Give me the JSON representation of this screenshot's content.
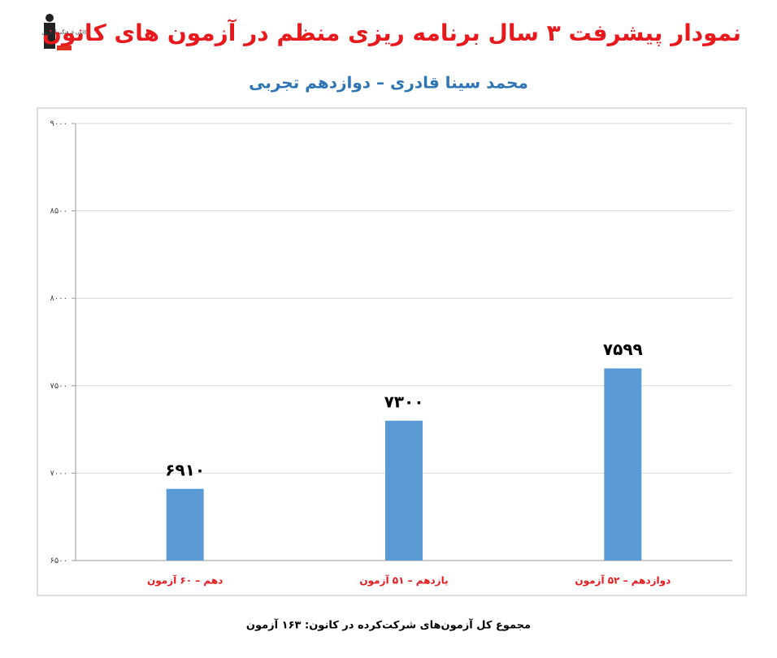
{
  "logo": {
    "text": "کانون فرهنگی آموزش"
  },
  "chart_data": {
    "type": "bar",
    "title": "نمودار پیشرفت ۳ سال برنامه ریزی منظم در آزمون های کانون",
    "subtitle": "محمد سینا قادری – دوازدهم تجربی",
    "categories": [
      "دهم – ۶۰ آزمون",
      "یازدهم – ۵۱ آزمون",
      "دوازدهم – ۵۲ آزمون"
    ],
    "values": [
      6910,
      7300,
      7599
    ],
    "value_labels": [
      "۶۹۱۰",
      "۷۳۰۰",
      "۷۵۹۹"
    ],
    "color": "#5b9bd5",
    "ylim": [
      6500,
      9000
    ],
    "yticks": [
      {
        "value": 6500,
        "label": "۶۵۰۰"
      },
      {
        "value": 7000,
        "label": "۷۰۰۰"
      },
      {
        "value": 7500,
        "label": "۷۵۰۰"
      },
      {
        "value": 8000,
        "label": "۸۰۰۰"
      },
      {
        "value": 8500,
        "label": "۸۵۰۰"
      },
      {
        "value": 9000,
        "label": "۹۰۰۰"
      }
    ],
    "grid": true,
    "footnote": "مجموع کل آزمون‌های شرکت‌کرده در کانون: ۱۶۳ آزمون"
  }
}
